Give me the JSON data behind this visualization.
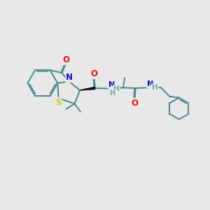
{
  "background_color": "#e8e8e8",
  "bond_color": "#4a8a8a",
  "bond_width": 1.4,
  "atom_colors": {
    "O": "#ee1111",
    "N": "#1111cc",
    "S": "#cccc00",
    "H": "#6aabab",
    "C": "#4a8a8a",
    "black": "#111111"
  },
  "figsize": [
    3.0,
    3.0
  ],
  "dpi": 100,
  "xlim": [
    0,
    10
  ],
  "ylim": [
    0,
    10
  ]
}
